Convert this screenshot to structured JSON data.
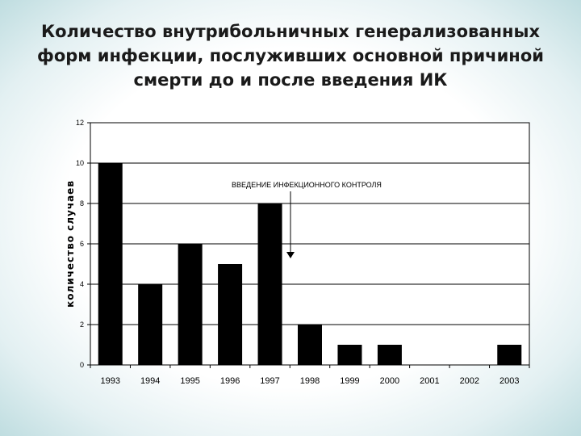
{
  "slide": {
    "title": "Количество внутрибольничных генерализованных форм инфекции, послуживших основной причиной смерти до и после введения ИК"
  },
  "chart_data": {
    "type": "bar",
    "categories": [
      "1993",
      "1994",
      "1995",
      "1996",
      "1997",
      "1998",
      "1999",
      "2000",
      "2001",
      "2002",
      "2003"
    ],
    "values": [
      10,
      4,
      6,
      5,
      8,
      2,
      1,
      1,
      0,
      0,
      1
    ],
    "ylabel": "количество случаев",
    "ylim": [
      0,
      12
    ],
    "yticks": [
      0,
      2,
      4,
      6,
      8,
      10,
      12
    ],
    "grid": true,
    "bar_color": "#000000",
    "annotation": {
      "text": "ВВЕДЕНИЕ ИНФЕКЦИОННОГО КОНТРОЛЯ",
      "arrow": "down",
      "points_to_category": "1997"
    }
  }
}
